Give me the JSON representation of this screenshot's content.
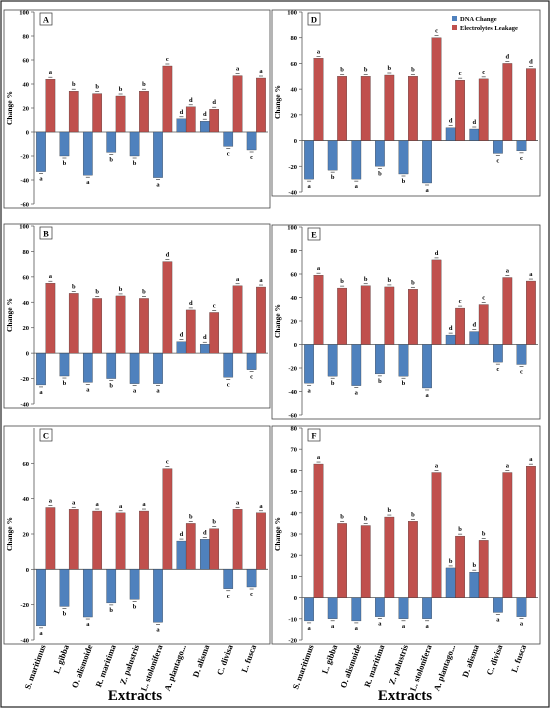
{
  "figure": {
    "xlabel": "Extracts",
    "ylabel": "Change %",
    "categories": [
      "S. maritimus",
      "L. gibba",
      "O. alismoide",
      "R. maritima",
      "Z. palustris",
      "L. stolonifera",
      "A. plantago...",
      "D. alisma",
      "C. divisa",
      "L. fusca"
    ],
    "legend": [
      "DNA Change",
      "Electrolytes Leakage"
    ],
    "colors": {
      "dna": "#4f81bd",
      "electro": "#c0504d"
    }
  },
  "chart_data": [
    {
      "type": "bar",
      "panel": "A",
      "ylim": [
        -60,
        100
      ],
      "yticks": [
        -60,
        -40,
        -20,
        0,
        20,
        40,
        60,
        80,
        100
      ],
      "series": [
        {
          "name": "DNA Change",
          "values": [
            -33,
            -20,
            -36,
            -17,
            -20,
            -38,
            11,
            9,
            -12,
            -15
          ],
          "letters": [
            "a",
            "b",
            "a",
            "b",
            "b",
            "a",
            "d",
            "d",
            "c",
            "c"
          ]
        },
        {
          "name": "Electrolytes Leakage",
          "values": [
            44,
            34,
            32,
            30,
            34,
            55,
            21,
            19,
            47,
            45
          ],
          "letters": [
            "a",
            "b",
            "b",
            "b",
            "b",
            "c",
            "d",
            "d",
            "a",
            "a"
          ]
        }
      ]
    },
    {
      "type": "bar",
      "panel": "D",
      "ylim": [
        -40,
        100
      ],
      "yticks": [
        -40,
        -20,
        0,
        20,
        40,
        60,
        80,
        100
      ],
      "legend": "top-right",
      "series": [
        {
          "name": "DNA Change",
          "values": [
            -30,
            -23,
            -30,
            -20,
            -26,
            -33,
            10,
            9,
            -10,
            -8
          ],
          "letters": [
            "a",
            "b",
            "a",
            "b",
            "b",
            "a",
            "d",
            "d",
            "c",
            "c"
          ]
        },
        {
          "name": "Electrolytes Leakage",
          "values": [
            64,
            50,
            50,
            51,
            50,
            80,
            47,
            48,
            60,
            56
          ],
          "letters": [
            "a",
            "b",
            "b",
            "b",
            "b",
            "c",
            "c",
            "c",
            "d",
            "d"
          ]
        }
      ]
    },
    {
      "type": "bar",
      "panel": "B",
      "ylim": [
        -40,
        100
      ],
      "yticks": [
        -40,
        -20,
        0,
        20,
        40,
        60,
        80,
        100
      ],
      "series": [
        {
          "name": "DNA Change",
          "values": [
            -25,
            -18,
            -23,
            -20,
            -24,
            -24,
            9,
            7,
            -19,
            -13
          ],
          "letters": [
            "a",
            "b",
            "a",
            "b",
            "a",
            "a",
            "d",
            "d",
            "c",
            "c"
          ]
        },
        {
          "name": "Electrolytes Leakage",
          "values": [
            55,
            47,
            43,
            45,
            43,
            72,
            34,
            32,
            53,
            52
          ],
          "letters": [
            "a",
            "b",
            "b",
            "b",
            "b",
            "d",
            "d",
            "c",
            "a",
            "a"
          ]
        }
      ]
    },
    {
      "type": "bar",
      "panel": "E",
      "ylim": [
        -60,
        100
      ],
      "yticks": [
        -60,
        -40,
        -20,
        0,
        20,
        40,
        60,
        80,
        100
      ],
      "series": [
        {
          "name": "DNA Change",
          "values": [
            -33,
            -27,
            -35,
            -25,
            -27,
            -37,
            8,
            11,
            -15,
            -17
          ],
          "letters": [
            "a",
            "b",
            "a",
            "b",
            "b",
            "a",
            "d",
            "d",
            "c",
            "c"
          ]
        },
        {
          "name": "Electrolytes Leakage",
          "values": [
            59,
            48,
            50,
            49,
            47,
            72,
            31,
            34,
            57,
            54
          ],
          "letters": [
            "a",
            "b",
            "b",
            "b",
            "b",
            "d",
            "c",
            "c",
            "a",
            "a"
          ]
        }
      ]
    },
    {
      "type": "bar",
      "panel": "C",
      "ylim": [
        -40,
        80
      ],
      "yticks": [
        -40,
        -20,
        0,
        20,
        40,
        60
      ],
      "series": [
        {
          "name": "DNA Change",
          "values": [
            -32,
            -21,
            -27,
            -19,
            -17,
            -30,
            16,
            17,
            -11,
            -10
          ],
          "letters": [
            "a",
            "b",
            "a",
            "b",
            "b",
            "a",
            "d",
            "d",
            "c",
            "c"
          ]
        },
        {
          "name": "Electrolytes Leakage",
          "values": [
            35,
            34,
            33,
            32,
            33,
            57,
            26,
            23,
            34,
            32
          ],
          "letters": [
            "a",
            "a",
            "a",
            "a",
            "a",
            "c",
            "b",
            "b",
            "a",
            "a"
          ]
        }
      ]
    },
    {
      "type": "bar",
      "panel": "F",
      "ylim": [
        -20,
        80
      ],
      "yticks": [
        -20,
        -10,
        0,
        10,
        20,
        30,
        40,
        50,
        60,
        70,
        80
      ],
      "series": [
        {
          "name": "DNA Change",
          "values": [
            -11,
            -10,
            -11,
            -9,
            -10,
            -10,
            14,
            12,
            -7,
            -9
          ],
          "letters": [
            "a",
            "a",
            "a",
            "a",
            "a",
            "a",
            "b",
            "b",
            "a",
            "a"
          ]
        },
        {
          "name": "Electrolytes Leakage",
          "values": [
            63,
            35,
            34,
            38,
            36,
            59,
            29,
            27,
            59,
            62
          ],
          "letters": [
            "a",
            "b",
            "b",
            "b",
            "b",
            "a",
            "b",
            "b",
            "a",
            "a"
          ]
        }
      ]
    }
  ]
}
